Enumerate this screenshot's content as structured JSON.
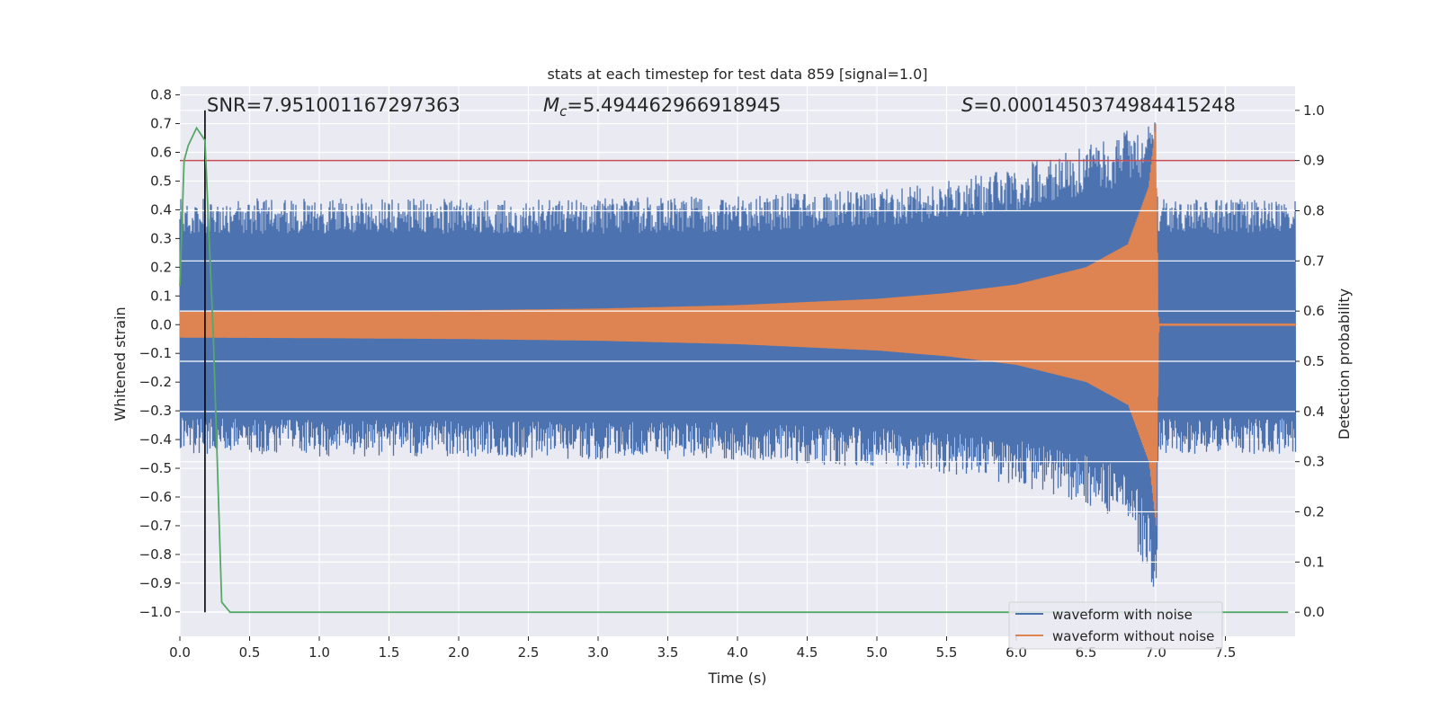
{
  "chart_data": {
    "type": "line",
    "title": "stats at each timestep for test data 859 [signal=1.0]",
    "xlabel": "Time (s)",
    "ylabel": "Whitened strain",
    "y2label": "Detection probability",
    "xlim": [
      0.0,
      8.0
    ],
    "ylim": [
      -1.085,
      0.83
    ],
    "y2lim": [
      -0.048,
      1.048
    ],
    "xticks": [
      "0.0",
      "0.5",
      "1.0",
      "1.5",
      "2.0",
      "2.5",
      "3.0",
      "3.5",
      "4.0",
      "4.5",
      "5.0",
      "5.5",
      "6.0",
      "6.5",
      "7.0",
      "7.5"
    ],
    "yticks": [
      "0.8",
      "0.7",
      "0.6",
      "0.5",
      "0.4",
      "0.3",
      "0.2",
      "0.1",
      "0.0",
      "−0.1",
      "−0.2",
      "−0.3",
      "−0.4",
      "−0.5",
      "−0.6",
      "−0.7",
      "−0.8",
      "−0.9",
      "−1.0"
    ],
    "y2ticks": [
      "1.0",
      "0.9",
      "0.8",
      "0.7",
      "0.6",
      "0.5",
      "0.4",
      "0.3",
      "0.2",
      "0.1",
      "0.0"
    ],
    "annotations": {
      "snr": "SNR=7.951001167297363",
      "mc_symbol": "M",
      "mc_sub": "c",
      "mc_value": "=5.494462966918945",
      "s_symbol": "S",
      "s_value": "=0.0001450374984415248"
    },
    "threshold": 0.9,
    "marker_time": 0.18,
    "merger_time": 7.0,
    "noise_envelope": {
      "x": [
        0.0,
        1.0,
        2.0,
        3.0,
        4.0,
        5.0,
        5.5,
        6.0,
        6.5,
        6.8,
        7.0,
        7.02,
        7.5,
        8.0
      ],
      "upper": [
        0.44,
        0.44,
        0.44,
        0.44,
        0.45,
        0.47,
        0.5,
        0.55,
        0.62,
        0.68,
        0.73,
        0.44,
        0.44,
        0.43
      ],
      "lower": [
        -0.45,
        -0.46,
        -0.46,
        -0.47,
        -0.47,
        -0.5,
        -0.52,
        -0.56,
        -0.63,
        -0.7,
        -0.98,
        -0.45,
        -0.45,
        -0.45
      ]
    },
    "clean_envelope": {
      "x": [
        0.0,
        1.0,
        2.0,
        3.0,
        4.0,
        5.0,
        5.5,
        6.0,
        6.5,
        6.8,
        6.95,
        7.0,
        7.02,
        8.0
      ],
      "amplitude": [
        0.045,
        0.047,
        0.05,
        0.056,
        0.068,
        0.09,
        0.11,
        0.14,
        0.2,
        0.28,
        0.48,
        0.7,
        0.004,
        0.004
      ]
    },
    "detection_probability": {
      "x": [
        0.0,
        0.03,
        0.06,
        0.12,
        0.18,
        0.24,
        0.3,
        0.36,
        0.42,
        7.95
      ],
      "y": [
        0.65,
        0.9,
        0.93,
        0.965,
        0.94,
        0.55,
        0.02,
        0.0,
        0.0,
        0.0
      ]
    },
    "series": [
      {
        "name": "waveform with noise",
        "color": "#4c72b0"
      },
      {
        "name": "waveform without noise",
        "color": "#dd8452"
      },
      {
        "name": "detection probability",
        "color": "#55a868"
      },
      {
        "name": "threshold",
        "color": "#c44e52"
      },
      {
        "name": "marker",
        "color": "#000000"
      }
    ],
    "legend": {
      "position": "lower-right",
      "entries": [
        "waveform with noise",
        "waveform without noise"
      ]
    }
  }
}
